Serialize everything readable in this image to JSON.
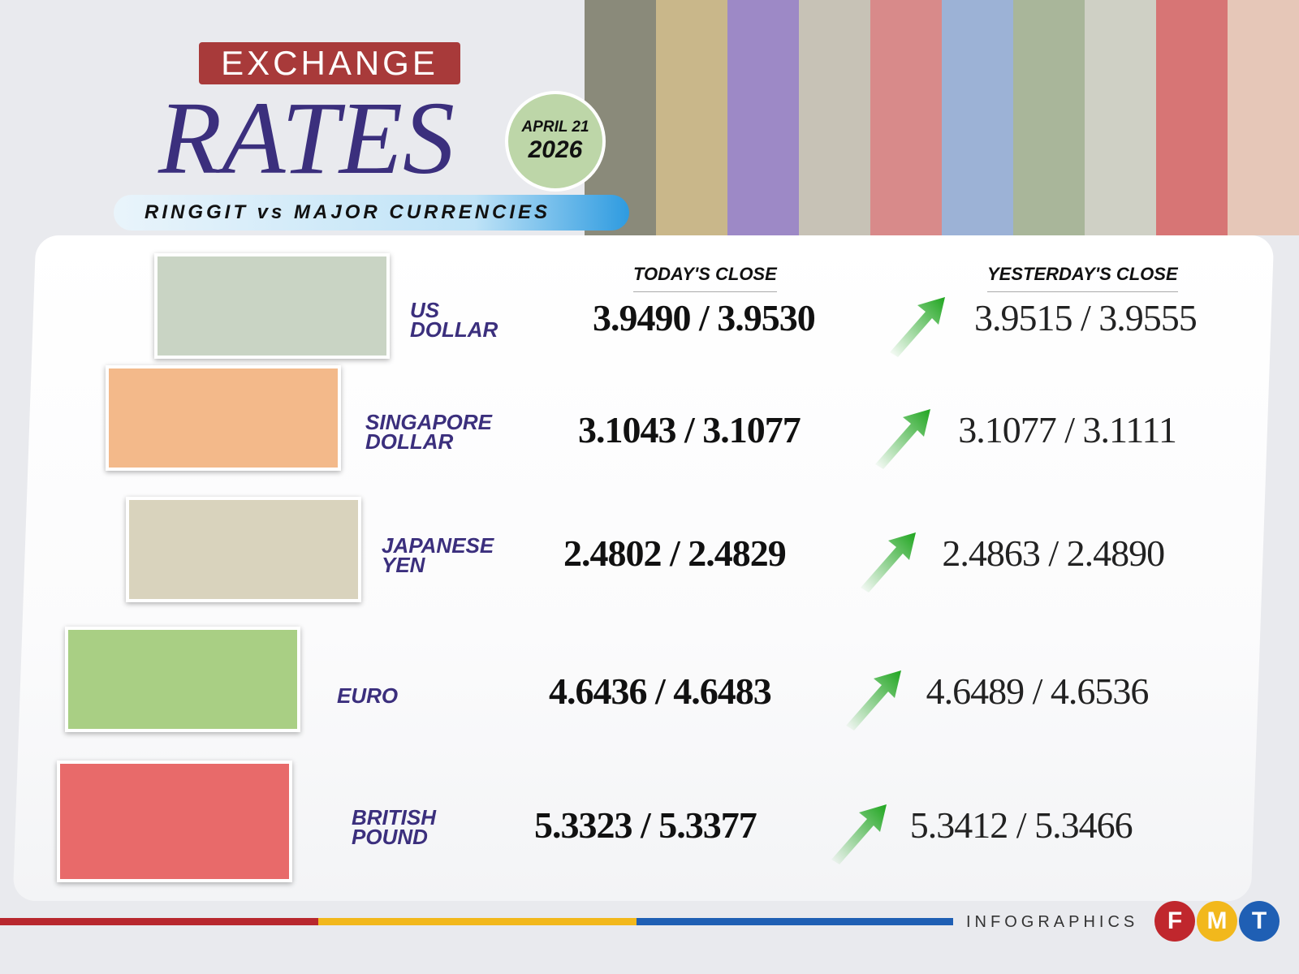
{
  "header": {
    "kicker": "EXCHANGE",
    "title": "RATES",
    "date_month_day": "APRIL 21",
    "date_year": "2026",
    "subtitle": "RINGGIT vs MAJOR CURRENCIES"
  },
  "columns": {
    "today": "TODAY'S CLOSE",
    "yesterday": "YESTERDAY'S CLOSE"
  },
  "rows": [
    {
      "currency_line1": "US",
      "currency_line2": "DOLLAR",
      "today": "3.9490 / 3.9530",
      "yesterday": "3.9515 / 3.9555",
      "trend": "up",
      "note_color": "#c9d4c4"
    },
    {
      "currency_line1": "SINGAPORE",
      "currency_line2": "DOLLAR",
      "today": "3.1043 / 3.1077",
      "yesterday": "3.1077 / 3.1111",
      "trend": "up",
      "note_color": "#f3b98a"
    },
    {
      "currency_line1": "JAPANESE",
      "currency_line2": "YEN",
      "today": "2.4802 / 2.4829",
      "yesterday": "2.4863 / 2.4890",
      "trend": "up",
      "note_color": "#d9d3bd"
    },
    {
      "currency_line1": "EURO",
      "currency_line2": "",
      "today": "4.6436 / 4.6483",
      "yesterday": "4.6489 / 4.6536",
      "trend": "up",
      "note_color": "#a9cf84"
    },
    {
      "currency_line1": "BRITISH",
      "currency_line2": "POUND",
      "today": "5.3323 / 5.3377",
      "yesterday": "5.3412 / 5.3466",
      "trend": "up",
      "note_color": "#e86a6a"
    }
  ],
  "footer": {
    "label": "INFOGRAPHICS",
    "logo_letters": [
      "F",
      "M",
      "T"
    ],
    "logo_colors": [
      "#c0272d",
      "#f2b81c",
      "#1f5fb4"
    ]
  },
  "colors": {
    "accent_purple": "#3b2f7d",
    "kicker_red": "#a83a3a",
    "arrow_green": "#1fa51f"
  }
}
